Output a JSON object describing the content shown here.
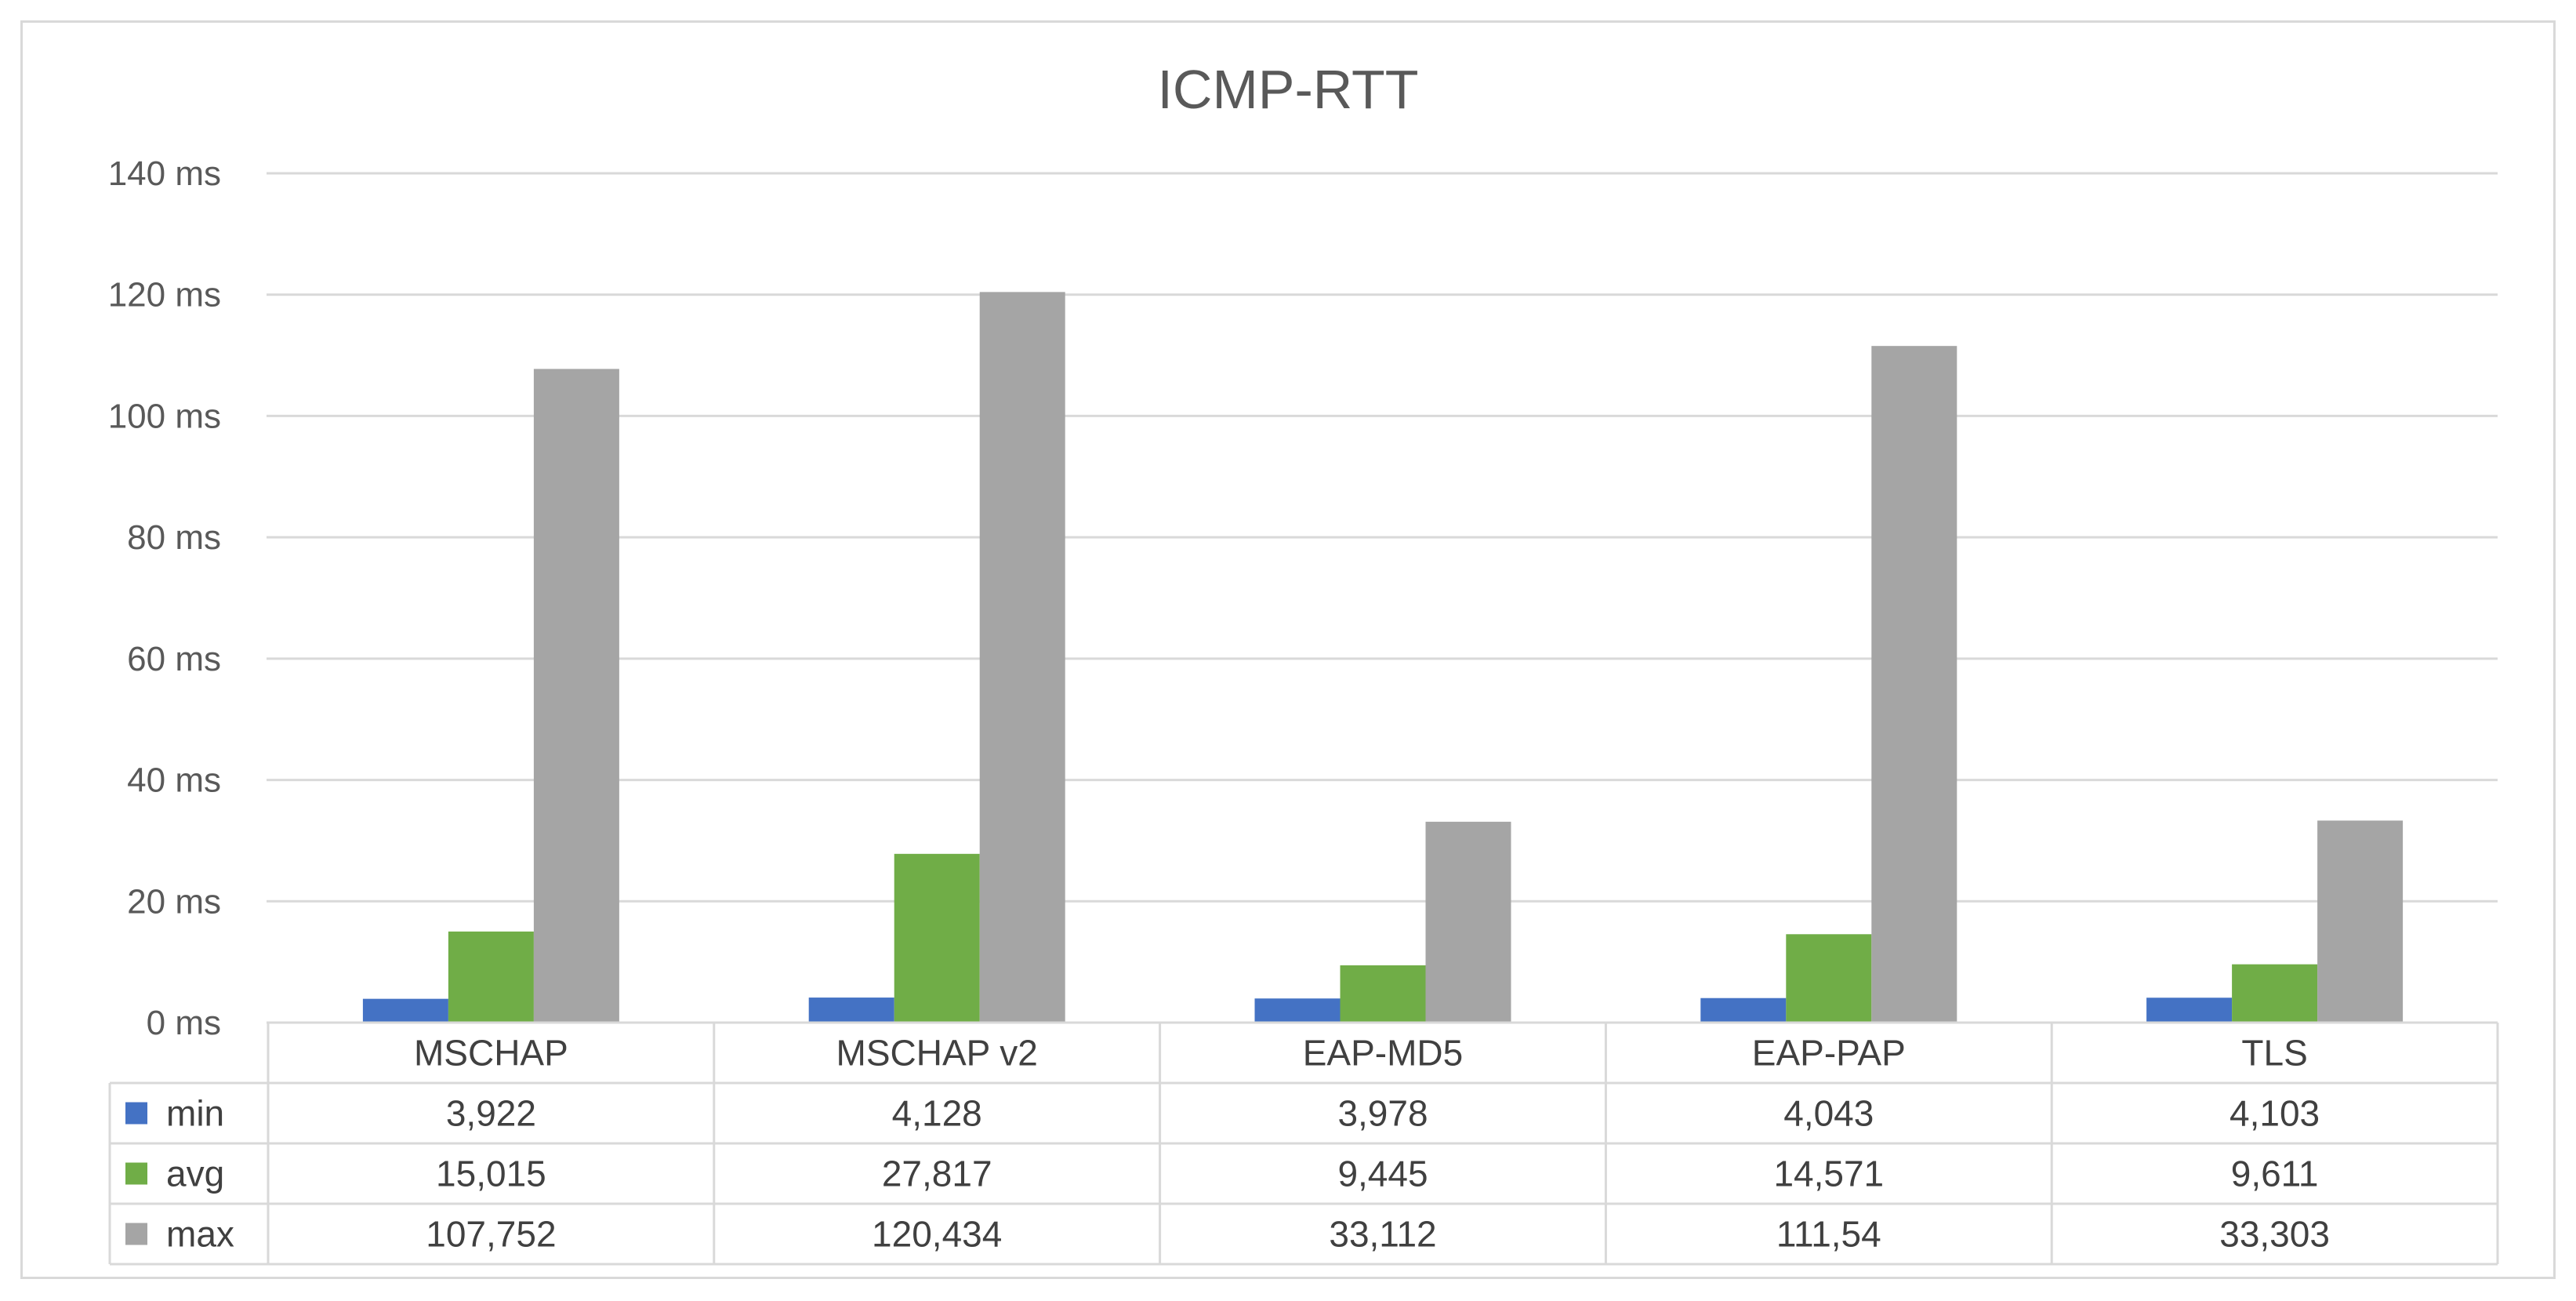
{
  "chart_data": {
    "type": "bar",
    "title": "ICMP-RTT",
    "categories": [
      "MSCHAP",
      "MSCHAP v2",
      "EAP-MD5",
      "EAP-PAP",
      "TLS"
    ],
    "series": [
      {
        "name": "min",
        "color": "#4472c4",
        "values": [
          3.922,
          4.128,
          3.978,
          4.043,
          4.103
        ],
        "labels": [
          "3,922",
          "4,128",
          "3,978",
          "4,043",
          "4,103"
        ]
      },
      {
        "name": "avg",
        "color": "#70ad47",
        "values": [
          15.015,
          27.817,
          9.445,
          14.571,
          9.611
        ],
        "labels": [
          "15,015",
          "27,817",
          "9,445",
          "14,571",
          "9,611"
        ]
      },
      {
        "name": "max",
        "color": "#a5a5a5",
        "values": [
          107.752,
          120.434,
          33.112,
          111.54,
          33.303
        ],
        "labels": [
          "107,752",
          "120,434",
          "33,112",
          "111,54",
          "33,303"
        ]
      }
    ],
    "ylim": [
      0,
      140
    ],
    "yticks": [
      0,
      20,
      40,
      60,
      80,
      100,
      120,
      140
    ],
    "ytick_labels": [
      "0 ms",
      "20 ms",
      "40 ms",
      "60 ms",
      "80 ms",
      "100 ms",
      "120 ms",
      "140 ms"
    ],
    "grid": true,
    "data_table": true
  }
}
